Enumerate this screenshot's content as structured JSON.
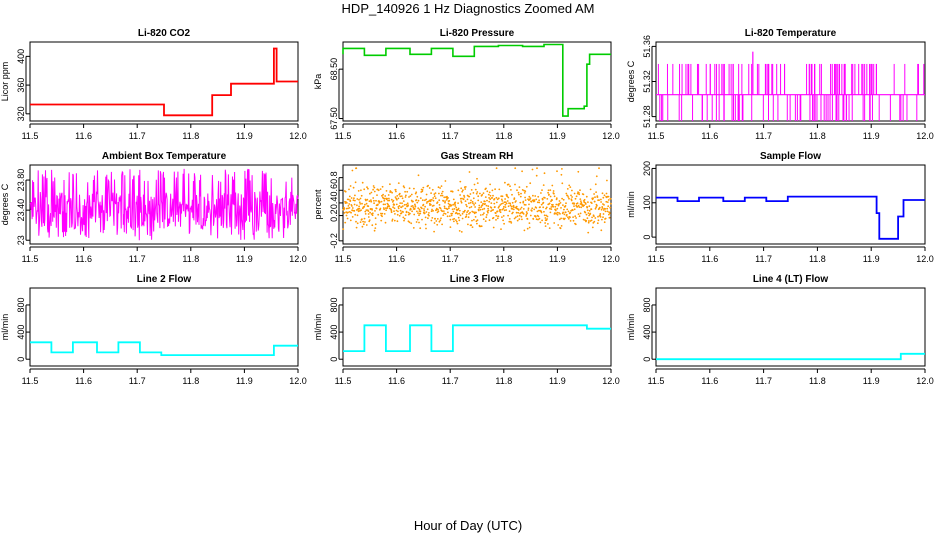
{
  "figure": {
    "title": "HDP_140926  1 Hz Diagnostics Zoomed AM",
    "xlabel": "Hour of Day (UTC)"
  },
  "chart_data": [
    {
      "id": "co2",
      "type": "line",
      "title": "Li-820 CO2",
      "ylabel": "Licor ppm",
      "color": "#ff0000",
      "xlim": [
        11.5,
        12.0
      ],
      "xticks": [
        11.5,
        11.6,
        11.7,
        11.8,
        11.9,
        12.0
      ],
      "ylim": [
        310,
        420
      ],
      "yticks": [
        320,
        360,
        400
      ],
      "series": [
        {
          "x": [
            11.5,
            11.75,
            11.75,
            11.84,
            11.84,
            11.875,
            11.875,
            11.955,
            11.955,
            11.96,
            11.96,
            12.0
          ],
          "y": [
            333,
            333,
            318,
            318,
            346,
            346,
            362,
            362,
            411,
            411,
            365,
            365
          ]
        }
      ]
    },
    {
      "id": "pressure",
      "type": "line",
      "title": "Li-820 Pressure",
      "ylabel": "kPa",
      "color": "#00cc00",
      "xlim": [
        11.5,
        12.0
      ],
      "xticks": [
        11.5,
        11.6,
        11.7,
        11.8,
        11.9,
        12.0
      ],
      "ylim": [
        67.45,
        69.05
      ],
      "yticks": [
        67.5,
        68.5
      ],
      "series": [
        {
          "x": [
            11.5,
            11.5,
            11.54,
            11.54,
            11.58,
            11.58,
            11.625,
            11.625,
            11.665,
            11.665,
            11.705,
            11.705,
            11.745,
            11.745,
            11.79,
            11.79,
            11.835,
            11.835,
            11.875,
            11.875,
            11.91,
            11.91,
            11.92,
            11.92,
            11.95,
            11.95,
            11.955,
            11.955,
            11.96,
            11.96,
            12.0
          ],
          "y": [
            68.8,
            68.92,
            68.92,
            68.78,
            68.78,
            68.92,
            68.92,
            68.8,
            68.8,
            68.92,
            68.92,
            68.76,
            68.76,
            68.96,
            68.96,
            68.98,
            68.98,
            68.96,
            68.96,
            69.0,
            69.0,
            67.55,
            67.55,
            67.7,
            67.7,
            67.75,
            67.75,
            68.6,
            68.6,
            68.8,
            68.8
          ]
        }
      ]
    },
    {
      "id": "temperature",
      "type": "line",
      "title": "Li-820 Temperature",
      "ylabel": "degrees C",
      "color": "#ff00ff",
      "xlim": [
        11.5,
        12.0
      ],
      "xticks": [
        11.5,
        11.6,
        11.7,
        11.8,
        11.9,
        12.0
      ],
      "ylim": [
        51.275,
        51.365
      ],
      "yticks": [
        51.28,
        51.32,
        51.36
      ],
      "series": [
        {
          "baseline": 51.305,
          "spike_values": [
            51.34,
            51.275
          ],
          "peak": {
            "x": 11.68,
            "y": 51.354
          }
        }
      ]
    },
    {
      "id": "box-temp",
      "type": "line",
      "title": "Ambient Box Temperature",
      "ylabel": "degrees C",
      "color": "#ff00ff",
      "xlim": [
        11.5,
        12.0
      ],
      "xticks": [
        11.5,
        11.6,
        11.7,
        11.8,
        11.9,
        12.0
      ],
      "ylim": [
        22.95,
        24.0
      ],
      "yticks": [
        23.0,
        23.4,
        23.8
      ],
      "series": [
        {
          "center": 23.4,
          "band": [
            23.0,
            23.95
          ]
        }
      ]
    },
    {
      "id": "rh",
      "type": "scatter",
      "title": "Gas Stream RH",
      "ylabel": "percent",
      "color": "#ff9900",
      "xlim": [
        11.5,
        12.0
      ],
      "xticks": [
        11.5,
        11.6,
        11.7,
        11.8,
        11.9,
        12.0
      ],
      "ylim": [
        -0.25,
        1.0
      ],
      "yticks": [
        -0.2,
        0.2,
        0.4,
        0.6,
        0.8
      ],
      "series": [
        {
          "center": 0.35,
          "band": [
            -0.2,
            0.95
          ]
        }
      ]
    },
    {
      "id": "sample-flow",
      "type": "line",
      "title": "Sample Flow",
      "ylabel": "ml/min",
      "color": "#0000ff",
      "xlim": [
        11.5,
        12.0
      ],
      "xticks": [
        11.5,
        11.6,
        11.7,
        11.8,
        11.9,
        12.0
      ],
      "ylim": [
        -20,
        210
      ],
      "yticks": [
        0,
        100,
        200
      ],
      "series": [
        {
          "x": [
            11.5,
            11.54,
            11.54,
            11.58,
            11.58,
            11.625,
            11.625,
            11.665,
            11.665,
            11.705,
            11.705,
            11.745,
            11.745,
            11.91,
            11.91,
            11.915,
            11.915,
            11.95,
            11.95,
            11.96,
            11.96,
            12.0
          ],
          "y": [
            115,
            115,
            105,
            105,
            115,
            115,
            105,
            105,
            115,
            115,
            105,
            105,
            118,
            118,
            70,
            70,
            -5,
            -5,
            60,
            60,
            108,
            108
          ]
        }
      ]
    },
    {
      "id": "line2-flow",
      "type": "line",
      "title": "Line 2 Flow",
      "ylabel": "ml/min",
      "color": "#00ffff",
      "xlim": [
        11.5,
        12.0
      ],
      "xticks": [
        11.5,
        11.6,
        11.7,
        11.8,
        11.9,
        12.0
      ],
      "ylim": [
        -100,
        1050
      ],
      "yticks": [
        0,
        400,
        800
      ],
      "series": [
        {
          "x": [
            11.5,
            11.54,
            11.54,
            11.58,
            11.58,
            11.625,
            11.625,
            11.665,
            11.665,
            11.705,
            11.705,
            11.745,
            11.745,
            11.955,
            11.955,
            12.0
          ],
          "y": [
            250,
            250,
            100,
            100,
            250,
            250,
            100,
            100,
            250,
            250,
            100,
            100,
            60,
            60,
            200,
            200
          ]
        }
      ]
    },
    {
      "id": "line3-flow",
      "type": "line",
      "title": "Line 3 Flow",
      "ylabel": "ml/min",
      "color": "#00ffff",
      "xlim": [
        11.5,
        12.0
      ],
      "xticks": [
        11.5,
        11.6,
        11.7,
        11.8,
        11.9,
        12.0
      ],
      "ylim": [
        -100,
        1050
      ],
      "yticks": [
        0,
        400,
        800
      ],
      "series": [
        {
          "x": [
            11.5,
            11.54,
            11.54,
            11.58,
            11.58,
            11.625,
            11.625,
            11.665,
            11.665,
            11.705,
            11.705,
            11.955,
            11.955,
            12.0
          ],
          "y": [
            120,
            120,
            500,
            500,
            120,
            120,
            500,
            500,
            120,
            120,
            500,
            500,
            450,
            450
          ]
        }
      ]
    },
    {
      "id": "line4-flow",
      "type": "line",
      "title": "Line 4 (LT) Flow",
      "ylabel": "ml/min",
      "color": "#00ffff",
      "xlim": [
        11.5,
        12.0
      ],
      "xticks": [
        11.5,
        11.6,
        11.7,
        11.8,
        11.9,
        12.0
      ],
      "ylim": [
        -100,
        1050
      ],
      "yticks": [
        0,
        400,
        800
      ],
      "series": [
        {
          "x": [
            11.5,
            11.955,
            11.955,
            12.0
          ],
          "y": [
            0,
            0,
            80,
            80
          ]
        }
      ]
    }
  ]
}
